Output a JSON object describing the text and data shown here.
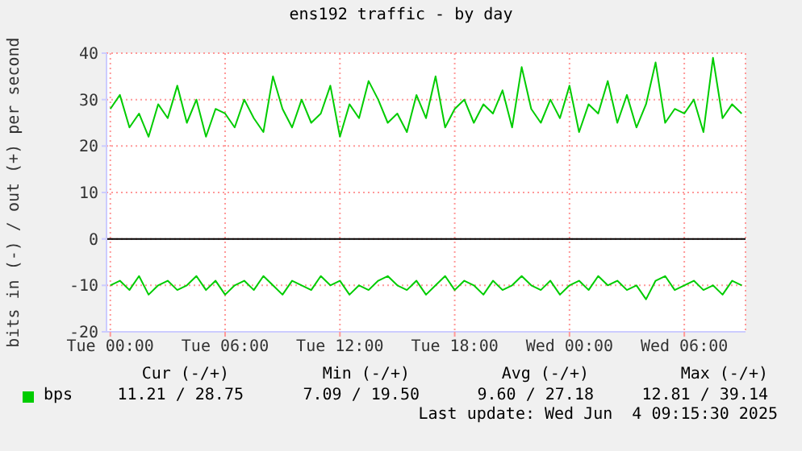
{
  "chart_data": {
    "type": "line",
    "title": "ens192 traffic - by day",
    "ylabel": "bits in (-) / out (+) per second",
    "x": [
      "2025-06-03T00:00",
      "2025-06-03T00:30",
      "2025-06-03T01:00",
      "2025-06-03T01:30",
      "2025-06-03T02:00",
      "2025-06-03T02:30",
      "2025-06-03T03:00",
      "2025-06-03T03:30",
      "2025-06-03T04:00",
      "2025-06-03T04:30",
      "2025-06-03T05:00",
      "2025-06-03T05:30",
      "2025-06-03T06:00",
      "2025-06-03T06:30",
      "2025-06-03T07:00",
      "2025-06-03T07:30",
      "2025-06-03T08:00",
      "2025-06-03T08:30",
      "2025-06-03T09:00",
      "2025-06-03T09:30",
      "2025-06-03T10:00",
      "2025-06-03T10:30",
      "2025-06-03T11:00",
      "2025-06-03T11:30",
      "2025-06-03T12:00",
      "2025-06-03T12:30",
      "2025-06-03T13:00",
      "2025-06-03T13:30",
      "2025-06-03T14:00",
      "2025-06-03T14:30",
      "2025-06-03T15:00",
      "2025-06-03T15:30",
      "2025-06-03T16:00",
      "2025-06-03T16:30",
      "2025-06-03T17:00",
      "2025-06-03T17:30",
      "2025-06-03T18:00",
      "2025-06-03T18:30",
      "2025-06-03T19:00",
      "2025-06-03T19:30",
      "2025-06-03T20:00",
      "2025-06-03T20:30",
      "2025-06-03T21:00",
      "2025-06-03T21:30",
      "2025-06-03T22:00",
      "2025-06-03T22:30",
      "2025-06-03T23:00",
      "2025-06-03T23:30",
      "2025-06-04T00:00",
      "2025-06-04T00:30",
      "2025-06-04T01:00",
      "2025-06-04T01:30",
      "2025-06-04T02:00",
      "2025-06-04T02:30",
      "2025-06-04T03:00",
      "2025-06-04T03:30",
      "2025-06-04T04:00",
      "2025-06-04T04:30",
      "2025-06-04T05:00",
      "2025-06-04T05:30",
      "2025-06-04T06:00",
      "2025-06-04T06:30",
      "2025-06-04T07:00",
      "2025-06-04T07:30",
      "2025-06-04T08:00",
      "2025-06-04T08:30",
      "2025-06-04T09:00"
    ],
    "series": [
      {
        "name": "bps",
        "color": "#00cc00",
        "values": [
          28,
          31,
          24,
          27,
          22,
          29,
          26,
          33,
          25,
          30,
          22,
          28,
          27,
          24,
          30,
          26,
          23,
          35,
          28,
          24,
          30,
          25,
          27,
          33,
          22,
          29,
          26,
          34,
          30,
          25,
          27,
          23,
          31,
          26,
          35,
          24,
          28,
          30,
          25,
          29,
          27,
          32,
          24,
          37,
          28,
          25,
          30,
          26,
          33,
          23,
          29,
          27,
          34,
          25,
          31,
          24,
          29,
          38,
          25,
          28,
          27,
          30,
          23,
          39,
          26,
          29,
          27
        ]
      },
      {
        "color": "#00cc00",
        "values": [
          -10,
          -9,
          -11,
          -8,
          -12,
          -10,
          -9,
          -11,
          -10,
          -8,
          -11,
          -9,
          -12,
          -10,
          -9,
          -11,
          -8,
          -10,
          -12,
          -9,
          -10,
          -11,
          -8,
          -10,
          -9,
          -12,
          -10,
          -11,
          -9,
          -8,
          -10,
          -11,
          -9,
          -12,
          -10,
          -8,
          -11,
          -9,
          -10,
          -12,
          -9,
          -11,
          -10,
          -8,
          -10,
          -11,
          -9,
          -12,
          -10,
          -9,
          -11,
          -8,
          -10,
          -9,
          -11,
          -10,
          -13,
          -9,
          -8,
          -11,
          -10,
          -9,
          -11,
          -10,
          -12,
          -9,
          -10
        ]
      }
    ],
    "xlim": [
      "2025-06-02T23:48",
      "2025-06-04T09:12"
    ],
    "xticks": [
      {
        "value": "2025-06-03T00:00",
        "label": "Tue 00:00"
      },
      {
        "value": "2025-06-03T06:00",
        "label": "Tue 06:00"
      },
      {
        "value": "2025-06-03T12:00",
        "label": "Tue 12:00"
      },
      {
        "value": "2025-06-03T18:00",
        "label": "Tue 18:00"
      },
      {
        "value": "2025-06-04T00:00",
        "label": "Wed 00:00"
      },
      {
        "value": "2025-06-04T06:00",
        "label": "Wed 06:00"
      }
    ],
    "ylim": [
      -20,
      40
    ],
    "yticks": [
      -20,
      -10,
      0,
      10,
      20,
      30,
      40
    ],
    "grid": true,
    "legend": "bottom",
    "ref_lines": [
      {
        "axis": "y",
        "value": 0,
        "color": "#000000"
      }
    ],
    "annotations": [
      "Cur (-/+)",
      "Min (-/+)",
      "Avg (-/+)",
      "Max (-/+)",
      "11.21 / 28.75",
      "7.09 / 19.50",
      "9.60 / 27.18",
      "12.81 / 39.14",
      "Last update: Wed Jun  4 09:15:30 2025"
    ]
  }
}
